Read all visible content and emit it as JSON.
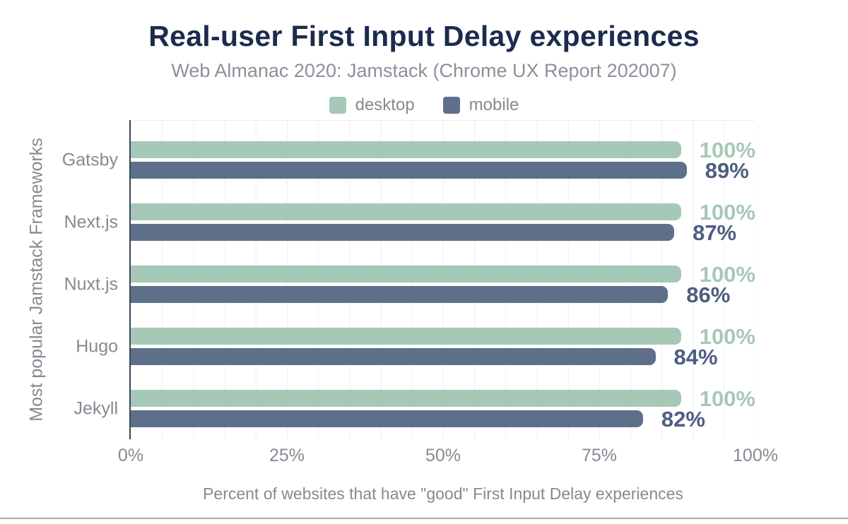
{
  "figure": {
    "title": "Real-user First Input Delay experiences",
    "subtitle": "Web Almanac 2020: Jamstack (Chrome UX Report 202007)"
  },
  "chart_data": {
    "type": "bar",
    "orientation": "horizontal",
    "title": "Real-user First Input Delay experiences",
    "subtitle": "Web Almanac 2020: Jamstack (Chrome UX Report 202007)",
    "categories": [
      "Gatsby",
      "Next.js",
      "Nuxt.js",
      "Hugo",
      "Jekyll"
    ],
    "series": [
      {
        "name": "desktop",
        "color": "#a6c8b7",
        "label_color": "#a6c8b6",
        "values": [
          100,
          100,
          100,
          100,
          100
        ]
      },
      {
        "name": "mobile",
        "color": "#5e7089",
        "label_color": "#4d5e80",
        "values": [
          89,
          87,
          86,
          84,
          82
        ]
      }
    ],
    "value_label_suffix": "%",
    "xlabel": "Percent of websites that have \"good\" First Input Delay experiences",
    "ylabel": "Most popular Jamstack Frameworks",
    "x_ticks": [
      "0%",
      "25%",
      "50%",
      "75%",
      "100%"
    ],
    "xlim": [
      0,
      100
    ],
    "grid": "vertical gridlines every 5%",
    "legend_position": "top-center"
  },
  "colors": {
    "title_text": "#1c2b4d",
    "muted_text": "#848a91",
    "subtitle_text": "#8b9199",
    "axis_line": "#3c4859",
    "gridline": "#eeeef2",
    "background": "#ffffff"
  }
}
